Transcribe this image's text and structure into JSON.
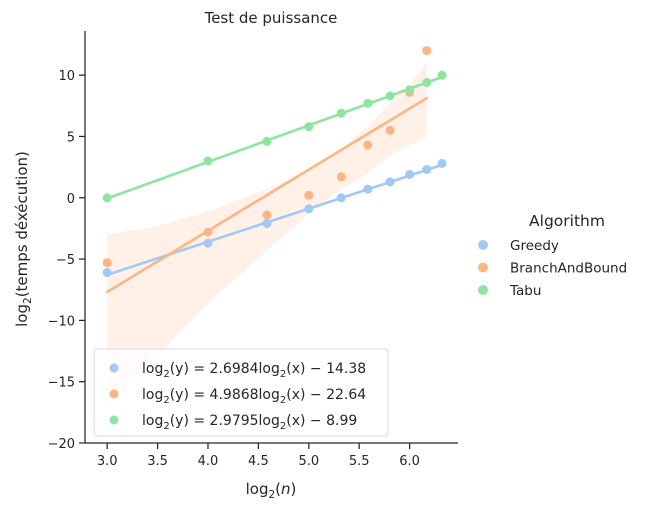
{
  "chart_data": {
    "type": "scatter",
    "title": "Test de puissance",
    "xlabel": "log2(n)",
    "ylabel": "log2(temps déxécution)",
    "xlim": [
      2.78,
      6.48
    ],
    "ylim": [
      -20,
      13.6
    ],
    "xticks": [
      3.0,
      3.5,
      4.0,
      4.5,
      5.0,
      5.5,
      6.0
    ],
    "xtick_labels": [
      "3.0",
      "3.5",
      "4.0",
      "4.5",
      "5.0",
      "5.5",
      "6.0"
    ],
    "yticks": [
      -20,
      -15,
      -10,
      -5,
      0,
      5,
      10
    ],
    "ytick_labels": [
      "−20",
      "−15",
      "−10",
      "−5",
      "0",
      "5",
      "10"
    ],
    "grid": false,
    "legend": {
      "title": "Algorithm",
      "placement": "right-outside",
      "entries": [
        "Greedy",
        "BranchAndBound",
        "Tabu"
      ]
    },
    "inner_legend": {
      "placement": "lower-left",
      "entries": [
        {
          "pre": "log",
          "sub": "2",
          "mid": "(y) = 2.6984log",
          "sub2": "2",
          "post": "(x) − 14.38"
        },
        {
          "pre": "log",
          "sub": "2",
          "mid": "(y) = 4.9868log",
          "sub2": "2",
          "post": "(x) − 22.64"
        },
        {
          "pre": "log",
          "sub": "2",
          "mid": "(y) = 2.9795log",
          "sub2": "2",
          "post": "(x) − 8.99"
        }
      ]
    },
    "series": [
      {
        "name": "Greedy",
        "color": "#a1c9f4",
        "x": [
          3.0,
          4.0,
          4.585,
          5.0,
          5.322,
          5.585,
          5.807,
          6.0,
          6.17,
          6.322
        ],
        "y": [
          -6.1,
          -3.7,
          -2.1,
          -0.9,
          0.0,
          0.7,
          1.3,
          1.9,
          2.3,
          2.8
        ],
        "fit": {
          "slope": 2.6984,
          "intercept": -14.38,
          "x_range": [
            3.0,
            6.322
          ]
        },
        "ci": null
      },
      {
        "name": "BranchAndBound",
        "color": "#ffb482",
        "x": [
          3.0,
          4.0,
          4.585,
          5.0,
          5.322,
          5.585,
          5.807,
          6.0,
          6.17
        ],
        "y": [
          -5.3,
          -2.8,
          -1.4,
          0.2,
          1.7,
          4.3,
          5.5,
          8.6,
          12.0
        ],
        "fit": {
          "slope": 4.9868,
          "intercept": -22.64,
          "x_range": [
            3.0,
            6.17
          ]
        },
        "ci": {
          "x": [
            3.0,
            3.5,
            4.0,
            4.585,
            5.0,
            5.322,
            5.585,
            5.807,
            6.0,
            6.17
          ],
          "lower": [
            -16.8,
            -12.9,
            -8.6,
            -4.3,
            -1.3,
            0.7,
            2.0,
            3.5,
            4.3,
            5.0
          ],
          "upper": [
            -3.0,
            -2.3,
            -1.1,
            0.7,
            2.3,
            4.0,
            5.8,
            7.7,
            9.2,
            11.0
          ]
        }
      },
      {
        "name": "Tabu",
        "color": "#8de5a1",
        "x": [
          3.0,
          4.0,
          4.585,
          5.0,
          5.322,
          5.585,
          5.807,
          6.0,
          6.17,
          6.322
        ],
        "y": [
          0.0,
          3.0,
          4.6,
          5.8,
          6.9,
          7.7,
          8.3,
          8.8,
          9.4,
          10.0
        ],
        "fit": {
          "slope": 2.9795,
          "intercept": -8.99,
          "x_range": [
            3.0,
            6.322
          ]
        },
        "ci": null
      }
    ]
  }
}
